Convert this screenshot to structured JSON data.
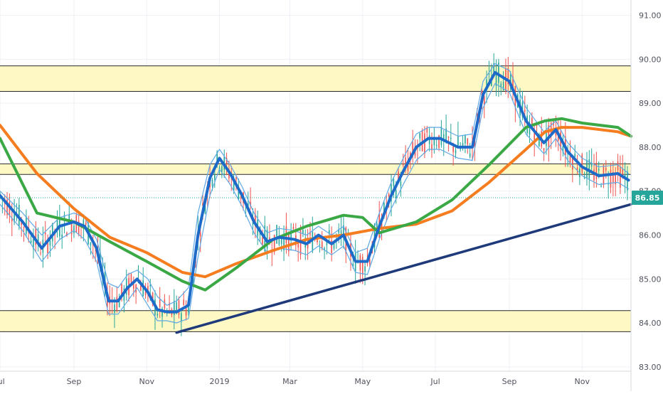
{
  "colors": {
    "band_fill": "#fdf8c4",
    "band_line": "#2b2b2b",
    "grid": "#eef1f5",
    "axis_text": "#50535e",
    "candle_up": "#26a69a",
    "candle_down": "#ef5350",
    "ribbon": "#5fa8e6",
    "ma_fast": "#1e6ac8",
    "ma_orange": "#f57c1f",
    "ma_green": "#3aa845",
    "trendline": "#1f3a7a",
    "price_line": "#26a69a",
    "price_badge_bg": "#26a69a",
    "price_badge_text": "#ffffff"
  },
  "chart_data": {
    "type": "candlestick",
    "x": {
      "ticks": [
        "Jul",
        "Sep",
        "Nov",
        "2019",
        "Mar",
        "May",
        "Jul",
        "Sep",
        "Nov"
      ],
      "range": [
        "2018-07-01",
        "2019-12-12"
      ]
    },
    "y": {
      "ticks": [
        "83.00",
        "84.00",
        "85.00",
        "86.00",
        "87.00",
        "88.00",
        "89.00",
        "90.00",
        "91.00"
      ],
      "range": [
        82.9,
        91.35
      ]
    },
    "grid": true,
    "last_price": "86.85",
    "horizontal_zones": [
      {
        "low": 83.8,
        "high": 84.28
      },
      {
        "low": 87.38,
        "high": 87.62
      },
      {
        "low": 89.27,
        "high": 89.85
      }
    ],
    "trendline": {
      "from": {
        "x": "2018-11-26",
        "y": 83.78
      },
      "to": {
        "x": "2019-12-12",
        "y": 86.7
      }
    },
    "series": [
      {
        "role": "fast-ma-thick-blue",
        "points": [
          [
            "2018-07-01",
            86.9
          ],
          [
            "2018-07-20",
            86.3
          ],
          [
            "2018-08-05",
            85.7
          ],
          [
            "2018-08-20",
            86.2
          ],
          [
            "2018-09-01",
            86.3
          ],
          [
            "2018-09-10",
            86.2
          ],
          [
            "2018-09-20",
            85.7
          ],
          [
            "2018-09-30",
            84.5
          ],
          [
            "2018-10-08",
            84.5
          ],
          [
            "2018-10-16",
            84.8
          ],
          [
            "2018-10-24",
            85.0
          ],
          [
            "2018-11-02",
            84.7
          ],
          [
            "2018-11-10",
            84.3
          ],
          [
            "2018-11-18",
            84.25
          ],
          [
            "2018-11-26",
            84.25
          ],
          [
            "2018-12-06",
            84.4
          ],
          [
            "2018-12-14",
            86.0
          ],
          [
            "2018-12-24",
            87.3
          ],
          [
            "2019-01-01",
            87.75
          ],
          [
            "2019-01-10",
            87.4
          ],
          [
            "2019-01-20",
            86.9
          ],
          [
            "2019-01-30",
            86.3
          ],
          [
            "2019-02-10",
            85.85
          ],
          [
            "2019-02-20",
            85.95
          ],
          [
            "2019-03-05",
            85.9
          ],
          [
            "2019-03-15",
            85.8
          ],
          [
            "2019-03-25",
            86.0
          ],
          [
            "2019-04-05",
            85.8
          ],
          [
            "2019-04-15",
            86.0
          ],
          [
            "2019-04-25",
            85.4
          ],
          [
            "2019-05-05",
            85.4
          ],
          [
            "2019-05-15",
            86.2
          ],
          [
            "2019-05-25",
            86.9
          ],
          [
            "2019-06-05",
            87.5
          ],
          [
            "2019-06-15",
            88.0
          ],
          [
            "2019-06-25",
            88.2
          ],
          [
            "2019-07-05",
            88.2
          ],
          [
            "2019-07-20",
            88.0
          ],
          [
            "2019-08-01",
            88.0
          ],
          [
            "2019-08-10",
            89.2
          ],
          [
            "2019-08-20",
            89.7
          ],
          [
            "2019-09-01",
            89.5
          ],
          [
            "2019-09-15",
            88.6
          ],
          [
            "2019-09-30",
            88.1
          ],
          [
            "2019-10-10",
            88.4
          ],
          [
            "2019-10-20",
            87.9
          ],
          [
            "2019-11-01",
            87.55
          ],
          [
            "2019-11-15",
            87.35
          ],
          [
            "2019-12-01",
            87.4
          ],
          [
            "2019-12-10",
            87.25
          ]
        ]
      },
      {
        "role": "slow-ma-orange",
        "points": [
          [
            "2018-07-01",
            88.5
          ],
          [
            "2018-08-01",
            87.4
          ],
          [
            "2018-09-01",
            86.6
          ],
          [
            "2018-10-01",
            85.95
          ],
          [
            "2018-11-01",
            85.6
          ],
          [
            "2018-12-01",
            85.15
          ],
          [
            "2018-12-20",
            85.05
          ],
          [
            "2019-01-15",
            85.35
          ],
          [
            "2019-02-15",
            85.65
          ],
          [
            "2019-03-15",
            85.9
          ],
          [
            "2019-04-15",
            86.0
          ],
          [
            "2019-05-15",
            86.15
          ],
          [
            "2019-06-15",
            86.25
          ],
          [
            "2019-07-15",
            86.55
          ],
          [
            "2019-08-15",
            87.2
          ],
          [
            "2019-09-15",
            87.95
          ],
          [
            "2019-10-01",
            88.35
          ],
          [
            "2019-10-15",
            88.45
          ],
          [
            "2019-11-01",
            88.45
          ],
          [
            "2019-12-01",
            88.35
          ],
          [
            "2019-12-12",
            88.25
          ]
        ]
      },
      {
        "role": "slow-ma-green",
        "points": [
          [
            "2018-07-01",
            88.2
          ],
          [
            "2018-08-01",
            86.5
          ],
          [
            "2018-09-01",
            86.3
          ],
          [
            "2018-10-01",
            85.85
          ],
          [
            "2018-11-01",
            85.4
          ],
          [
            "2018-12-01",
            84.95
          ],
          [
            "2018-12-20",
            84.75
          ],
          [
            "2019-01-15",
            85.25
          ],
          [
            "2019-02-15",
            85.9
          ],
          [
            "2019-03-15",
            86.2
          ],
          [
            "2019-04-15",
            86.45
          ],
          [
            "2019-05-01",
            86.4
          ],
          [
            "2019-05-15",
            86.05
          ],
          [
            "2019-06-15",
            86.3
          ],
          [
            "2019-07-15",
            86.8
          ],
          [
            "2019-08-15",
            87.6
          ],
          [
            "2019-09-15",
            88.45
          ],
          [
            "2019-10-01",
            88.6
          ],
          [
            "2019-10-15",
            88.65
          ],
          [
            "2019-11-01",
            88.55
          ],
          [
            "2019-12-01",
            88.45
          ],
          [
            "2019-12-12",
            88.25
          ]
        ]
      },
      {
        "role": "ribbon-upper",
        "points": [
          [
            "2018-07-01",
            87.0
          ],
          [
            "2018-07-20",
            86.5
          ],
          [
            "2018-08-05",
            86.0
          ],
          [
            "2018-08-20",
            86.4
          ],
          [
            "2018-09-01",
            86.5
          ],
          [
            "2018-09-10",
            86.4
          ],
          [
            "2018-09-20",
            85.9
          ],
          [
            "2018-09-30",
            84.9
          ],
          [
            "2018-10-08",
            84.8
          ],
          [
            "2018-10-16",
            85.1
          ],
          [
            "2018-10-24",
            85.2
          ],
          [
            "2018-11-02",
            85.0
          ],
          [
            "2018-11-10",
            84.6
          ],
          [
            "2018-11-18",
            84.4
          ],
          [
            "2018-11-26",
            84.5
          ],
          [
            "2018-12-06",
            84.8
          ],
          [
            "2018-12-14",
            86.5
          ],
          [
            "2018-12-24",
            87.6
          ],
          [
            "2019-01-01",
            87.95
          ],
          [
            "2019-01-10",
            87.6
          ],
          [
            "2019-01-20",
            87.1
          ],
          [
            "2019-01-30",
            86.5
          ],
          [
            "2019-02-10",
            86.05
          ],
          [
            "2019-02-20",
            86.15
          ],
          [
            "2019-03-05",
            86.1
          ],
          [
            "2019-03-15",
            86.0
          ],
          [
            "2019-03-25",
            86.2
          ],
          [
            "2019-04-05",
            86.0
          ],
          [
            "2019-04-15",
            86.2
          ],
          [
            "2019-04-25",
            85.6
          ],
          [
            "2019-05-05",
            85.7
          ],
          [
            "2019-05-15",
            86.5
          ],
          [
            "2019-05-25",
            87.2
          ],
          [
            "2019-06-05",
            87.8
          ],
          [
            "2019-06-15",
            88.3
          ],
          [
            "2019-06-25",
            88.45
          ],
          [
            "2019-07-05",
            88.45
          ],
          [
            "2019-07-20",
            88.25
          ],
          [
            "2019-08-01",
            88.3
          ],
          [
            "2019-08-10",
            89.5
          ],
          [
            "2019-08-20",
            89.9
          ],
          [
            "2019-09-01",
            89.75
          ],
          [
            "2019-09-15",
            88.9
          ],
          [
            "2019-09-30",
            88.35
          ],
          [
            "2019-10-10",
            88.6
          ],
          [
            "2019-10-20",
            88.1
          ],
          [
            "2019-11-01",
            87.75
          ],
          [
            "2019-11-15",
            87.55
          ],
          [
            "2019-12-01",
            87.6
          ],
          [
            "2019-12-10",
            87.4
          ]
        ]
      },
      {
        "role": "ribbon-lower",
        "points": [
          [
            "2018-07-01",
            86.7
          ],
          [
            "2018-07-20",
            86.1
          ],
          [
            "2018-08-05",
            85.4
          ],
          [
            "2018-08-20",
            85.9
          ],
          [
            "2018-09-01",
            86.1
          ],
          [
            "2018-09-10",
            85.9
          ],
          [
            "2018-09-20",
            85.4
          ],
          [
            "2018-09-30",
            84.2
          ],
          [
            "2018-10-08",
            84.2
          ],
          [
            "2018-10-16",
            84.5
          ],
          [
            "2018-10-24",
            84.8
          ],
          [
            "2018-11-02",
            84.4
          ],
          [
            "2018-11-10",
            84.05
          ],
          [
            "2018-11-18",
            84.05
          ],
          [
            "2018-11-26",
            84.0
          ],
          [
            "2018-12-06",
            84.1
          ],
          [
            "2018-12-14",
            85.5
          ],
          [
            "2018-12-24",
            86.9
          ],
          [
            "2019-01-01",
            87.5
          ],
          [
            "2019-01-10",
            87.15
          ],
          [
            "2019-01-20",
            86.65
          ],
          [
            "2019-01-30",
            86.05
          ],
          [
            "2019-02-10",
            85.6
          ],
          [
            "2019-02-20",
            85.7
          ],
          [
            "2019-03-05",
            85.65
          ],
          [
            "2019-03-15",
            85.55
          ],
          [
            "2019-03-25",
            85.75
          ],
          [
            "2019-04-05",
            85.55
          ],
          [
            "2019-04-15",
            85.75
          ],
          [
            "2019-04-25",
            85.15
          ],
          [
            "2019-05-05",
            85.1
          ],
          [
            "2019-05-15",
            85.9
          ],
          [
            "2019-05-25",
            86.6
          ],
          [
            "2019-06-05",
            87.2
          ],
          [
            "2019-06-15",
            87.7
          ],
          [
            "2019-06-25",
            87.95
          ],
          [
            "2019-07-05",
            87.95
          ],
          [
            "2019-07-20",
            87.75
          ],
          [
            "2019-08-01",
            87.7
          ],
          [
            "2019-08-10",
            88.9
          ],
          [
            "2019-08-20",
            89.45
          ],
          [
            "2019-09-01",
            89.25
          ],
          [
            "2019-09-15",
            88.3
          ],
          [
            "2019-09-30",
            87.85
          ],
          [
            "2019-10-10",
            88.2
          ],
          [
            "2019-10-20",
            87.7
          ],
          [
            "2019-11-01",
            87.35
          ],
          [
            "2019-11-15",
            87.15
          ],
          [
            "2019-12-01",
            87.2
          ],
          [
            "2019-12-10",
            87.05
          ]
        ]
      }
    ]
  }
}
